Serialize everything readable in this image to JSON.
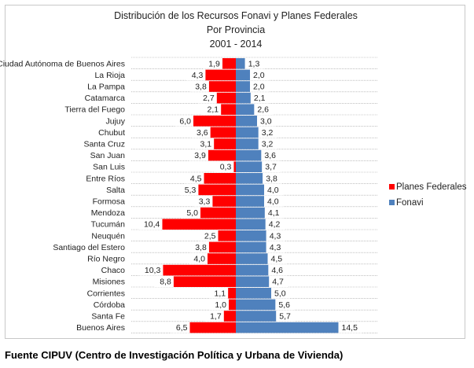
{
  "chart_data": {
    "type": "bar",
    "orientation": "horizontal-diverging",
    "title": [
      "Distribución de los Recursos Fonavi y Planes Federales",
      "Por Provincia",
      "2001 - 2014"
    ],
    "categories": [
      "Ciudad Autónoma de Buenos Aires",
      "La Rioja",
      "La Pampa",
      "Catamarca",
      "Tierra del Fuego",
      "Jujuy",
      "Chubut",
      "Santa Cruz",
      "San Juan",
      "San Luis",
      "Entre Ríos",
      "Salta",
      "Formosa",
      "Mendoza",
      "Tucumán",
      "Neuquén",
      "Santiago del Estero",
      "Río Negro",
      "Chaco",
      "Misiones",
      "Corrientes",
      "Córdoba",
      "Santa Fe",
      "Buenos Aires"
    ],
    "series": [
      {
        "name": "Planes Federales",
        "color": "#ff0000",
        "side": "left",
        "values": [
          1.9,
          4.3,
          3.8,
          2.7,
          2.1,
          6.0,
          3.6,
          3.1,
          3.9,
          0.3,
          4.5,
          5.3,
          3.3,
          5.0,
          10.4,
          2.5,
          3.8,
          4.0,
          10.3,
          8.8,
          1.1,
          1.0,
          1.7,
          6.5
        ],
        "labels": [
          "1,9",
          "4,3",
          "3,8",
          "2,7",
          "2,1",
          "6,0",
          "3,6",
          "3,1",
          "3,9",
          "0,3",
          "4,5",
          "5,3",
          "3,3",
          "5,0",
          "10,4",
          "2,5",
          "3,8",
          "4,0",
          "10,3",
          "8,8",
          "1,1",
          "1,0",
          "1,7",
          "6,5"
        ]
      },
      {
        "name": "Fonavi",
        "color": "#4f81bd",
        "side": "right",
        "values": [
          1.3,
          2.0,
          2.0,
          2.1,
          2.6,
          3.0,
          3.2,
          3.2,
          3.6,
          3.7,
          3.8,
          4.0,
          4.0,
          4.1,
          4.2,
          4.3,
          4.3,
          4.5,
          4.6,
          4.7,
          5.0,
          5.6,
          5.7,
          14.5
        ],
        "labels": [
          "1,3",
          "2,0",
          "2,0",
          "2,1",
          "2,6",
          "3,0",
          "3,2",
          "3,2",
          "3,6",
          "3,7",
          "3,8",
          "4,0",
          "4,0",
          "4,1",
          "4,2",
          "4,3",
          "4,3",
          "4,5",
          "4,6",
          "4,7",
          "5,0",
          "5,6",
          "5,7",
          "14,5"
        ]
      }
    ],
    "legend_position": "right",
    "grid": true
  },
  "footer": "Fuente CIPUV (Centro de Investigación Política y Urbana de Vivienda)"
}
